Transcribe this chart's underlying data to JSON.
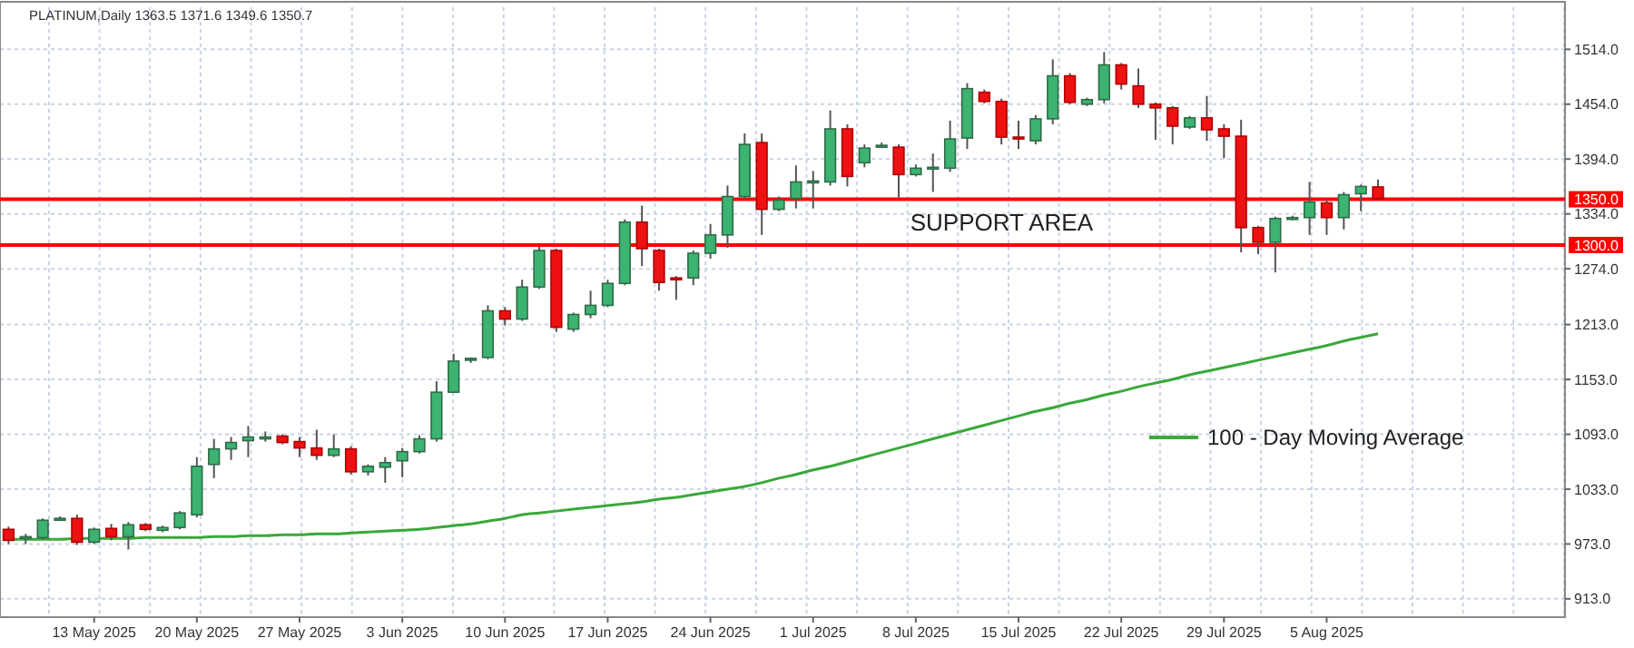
{
  "chart_data": {
    "type": "candlestick",
    "title": "PLATINUM,Daily  1363.5 1371.6 1349.6 1350.7",
    "categories": [
      null,
      null,
      null,
      null,
      null,
      "13 May 2025",
      null,
      null,
      null,
      null,
      null,
      "20 May 2025",
      null,
      null,
      null,
      null,
      null,
      "27 May 2025",
      null,
      null,
      null,
      null,
      null,
      "3 Jun 2025",
      null,
      null,
      null,
      null,
      null,
      "10 Jun 2025",
      null,
      null,
      null,
      null,
      null,
      "17 Jun 2025",
      null,
      null,
      null,
      null,
      null,
      "24 Jun 2025",
      null,
      null,
      null,
      null,
      null,
      "1 Jul 2025",
      null,
      null,
      null,
      null,
      null,
      "8 Jul 2025",
      null,
      null,
      null,
      null,
      null,
      "15 Jul 2025",
      null,
      null,
      null,
      null,
      null,
      "22 Jul 2025",
      null,
      null,
      null,
      null,
      null,
      "29 Jul 2025",
      null,
      null,
      null,
      null,
      null,
      "5 Aug 2025",
      null,
      null,
      null
    ],
    "ohlc": [
      [
        989,
        992,
        973,
        977
      ],
      [
        979,
        984,
        973,
        981
      ],
      [
        980,
        1001,
        978,
        999
      ],
      [
        1000,
        1003,
        999,
        1001
      ],
      [
        1001,
        1005,
        972,
        975
      ],
      [
        975,
        991,
        973,
        989
      ],
      [
        990,
        995,
        977,
        981
      ],
      [
        981,
        997,
        967,
        994
      ],
      [
        994,
        996,
        987,
        989
      ],
      [
        988,
        993,
        986,
        991
      ],
      [
        991,
        1009,
        989,
        1007
      ],
      [
        1005,
        1068,
        1002,
        1058
      ],
      [
        1060,
        1088,
        1045,
        1077
      ],
      [
        1077,
        1090,
        1065,
        1084
      ],
      [
        1086,
        1102,
        1068,
        1090
      ],
      [
        1088,
        1096,
        1085,
        1090
      ],
      [
        1091,
        1093,
        1082,
        1084
      ],
      [
        1085,
        1090,
        1068,
        1078
      ],
      [
        1078,
        1098,
        1065,
        1070
      ],
      [
        1070,
        1093,
        1068,
        1077
      ],
      [
        1077,
        1080,
        1049,
        1052
      ],
      [
        1052,
        1060,
        1048,
        1058
      ],
      [
        1057,
        1068,
        1040,
        1062
      ],
      [
        1064,
        1078,
        1046,
        1074
      ],
      [
        1074,
        1092,
        1072,
        1088
      ],
      [
        1088,
        1151,
        1085,
        1139
      ],
      [
        1139,
        1181,
        1138,
        1173
      ],
      [
        1174,
        1177,
        1171,
        1176
      ],
      [
        1177,
        1234,
        1175,
        1228
      ],
      [
        1228,
        1232,
        1212,
        1219
      ],
      [
        1219,
        1262,
        1217,
        1254
      ],
      [
        1254,
        1298,
        1252,
        1294
      ],
      [
        1294,
        1296,
        1205,
        1210
      ],
      [
        1208,
        1226,
        1205,
        1224
      ],
      [
        1224,
        1250,
        1220,
        1234
      ],
      [
        1234,
        1262,
        1232,
        1258
      ],
      [
        1258,
        1328,
        1256,
        1325
      ],
      [
        1325,
        1343,
        1277,
        1296
      ],
      [
        1294,
        1296,
        1250,
        1259
      ],
      [
        1264,
        1266,
        1240,
        1262
      ],
      [
        1264,
        1294,
        1256,
        1291
      ],
      [
        1291,
        1323,
        1285,
        1311
      ],
      [
        1311,
        1365,
        1297,
        1353
      ],
      [
        1353,
        1422,
        1350,
        1410
      ],
      [
        1412,
        1422,
        1311,
        1339
      ],
      [
        1339,
        1353,
        1337,
        1349
      ],
      [
        1351,
        1387,
        1340,
        1369
      ],
      [
        1368,
        1381,
        1340,
        1370
      ],
      [
        1369,
        1447,
        1365,
        1427
      ],
      [
        1427,
        1432,
        1364,
        1375
      ],
      [
        1390,
        1410,
        1385,
        1406
      ],
      [
        1408,
        1412,
        1406,
        1409
      ],
      [
        1407,
        1410,
        1352,
        1377
      ],
      [
        1377,
        1388,
        1375,
        1384
      ],
      [
        1383,
        1400,
        1358,
        1385
      ],
      [
        1384,
        1436,
        1380,
        1416
      ],
      [
        1417,
        1477,
        1405,
        1471
      ],
      [
        1467,
        1470,
        1455,
        1457
      ],
      [
        1457,
        1460,
        1410,
        1418
      ],
      [
        1418,
        1436,
        1405,
        1416
      ],
      [
        1414,
        1442,
        1410,
        1438
      ],
      [
        1438,
        1503,
        1432,
        1485
      ],
      [
        1485,
        1488,
        1454,
        1456
      ],
      [
        1454,
        1461,
        1452,
        1459
      ],
      [
        1459,
        1511,
        1455,
        1497
      ],
      [
        1497,
        1499,
        1470,
        1476
      ],
      [
        1474,
        1493,
        1450,
        1454
      ],
      [
        1454,
        1456,
        1415,
        1450
      ],
      [
        1450,
        1452,
        1410,
        1430
      ],
      [
        1429,
        1441,
        1427,
        1439
      ],
      [
        1439,
        1463,
        1414,
        1426
      ],
      [
        1427,
        1432,
        1395,
        1419
      ],
      [
        1419,
        1437,
        1292,
        1319
      ],
      [
        1319,
        1321,
        1290,
        1303
      ],
      [
        1303,
        1331,
        1270,
        1329
      ],
      [
        1329,
        1332,
        1327,
        1330
      ],
      [
        1330,
        1369,
        1311,
        1347
      ],
      [
        1346,
        1350,
        1311,
        1330
      ],
      [
        1330,
        1358,
        1317,
        1355
      ],
      [
        1356,
        1366,
        1337,
        1364
      ],
      [
        1363.5,
        1371.6,
        1349.6,
        1350.7
      ]
    ],
    "series": [
      {
        "type": "line",
        "name": "100 - Day Moving Average",
        "color": "#3aa83a",
        "values": [
          978,
          978,
          978,
          978,
          979,
          979,
          979,
          979,
          980,
          980,
          980,
          980,
          981,
          981,
          982,
          982,
          983,
          983,
          984,
          984,
          985,
          986,
          987,
          988,
          989,
          991,
          993,
          995,
          998,
          1001,
          1005,
          1007,
          1009,
          1011,
          1013,
          1015,
          1017,
          1019,
          1022,
          1024,
          1027,
          1030,
          1033,
          1036,
          1040,
          1045,
          1049,
          1054,
          1058,
          1063,
          1068,
          1073,
          1078,
          1083,
          1088,
          1093,
          1098,
          1103,
          1108,
          1113,
          1118,
          1122,
          1127,
          1131,
          1136,
          1140,
          1145,
          1149,
          1153,
          1158,
          1162,
          1166,
          1170,
          1174,
          1178,
          1182,
          1186,
          1190,
          1195,
          1199,
          1203
        ]
      }
    ],
    "ylim": [
      893,
      1560
    ],
    "yticks": [
      {
        "value": 913,
        "label": "913.0"
      },
      {
        "value": 973,
        "label": "973.0"
      },
      {
        "value": 1033,
        "label": "1033.0"
      },
      {
        "value": 1093,
        "label": "1093.0"
      },
      {
        "value": 1153,
        "label": "1153.0"
      },
      {
        "value": 1213,
        "label": "1213.0"
      },
      {
        "value": 1274,
        "label": "1274.0"
      },
      {
        "value": 1334,
        "label": "1334.0"
      },
      {
        "value": 1394,
        "label": "1394.0"
      },
      {
        "value": 1454,
        "label": "1454.0"
      },
      {
        "value": 1514,
        "label": "1514.0"
      }
    ],
    "ref_lines": [
      {
        "axis": "y",
        "value": 1350,
        "label": "1350.0",
        "color": "#ff0000"
      },
      {
        "axis": "y",
        "value": 1300,
        "label": "1300.0",
        "color": "#ff0000"
      }
    ],
    "annotations": [
      "SUPPORT AREA"
    ],
    "legend": "right",
    "grid": true
  }
}
